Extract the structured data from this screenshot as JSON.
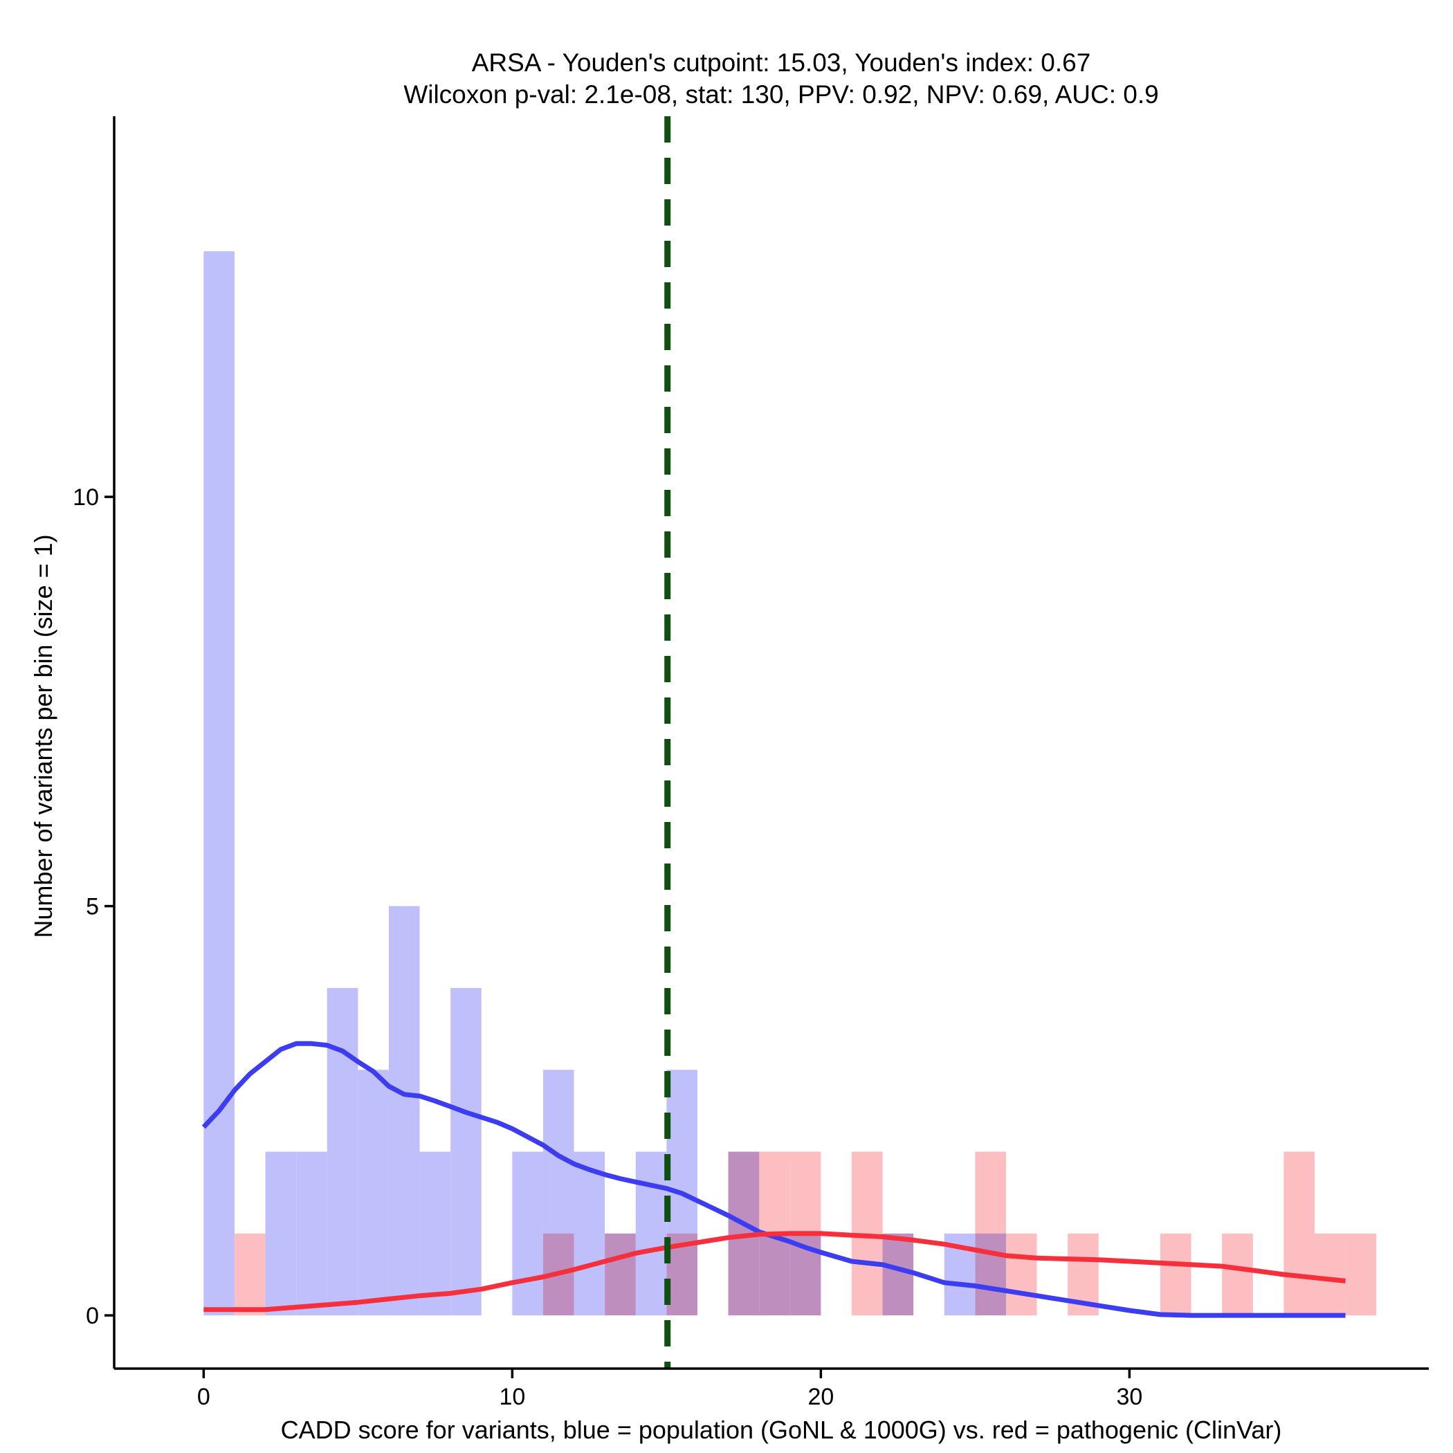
{
  "chart_data": {
    "type": "bar",
    "title_line1": "ARSA - Youden's cutpoint: 15.03, Youden's index: 0.67",
    "title_line2": "Wilcoxon p-val: 2.1e-08, stat: 130, PPV: 0.92, NPV: 0.69, AUC: 0.9",
    "xlabel": "CADD score for variants, blue = population (GoNL & 1000G) vs. red = pathogenic (ClinVar)",
    "ylabel": "Number of variants per bin (size = 1)",
    "xlim": [
      -2.9,
      39.7
    ],
    "ylim": [
      -0.65,
      14.65
    ],
    "x_ticks": [
      0,
      10,
      20,
      30
    ],
    "y_ticks": [
      0,
      5,
      10
    ],
    "bin_size": 1,
    "cutpoint": 15.03,
    "colors": {
      "population_bar": "#bfbffb",
      "pathogenic_bar": "#fdbec1",
      "population_line": "#3c3cf0",
      "pathogenic_line": "#f5303c",
      "cutpoint_line": "#0f4f0f"
    },
    "series": [
      {
        "name": "population (GoNL & 1000G)",
        "bins": [
          {
            "start": 0,
            "count": 13
          },
          {
            "start": 2,
            "count": 2
          },
          {
            "start": 3,
            "count": 2
          },
          {
            "start": 4,
            "count": 4
          },
          {
            "start": 5,
            "count": 3
          },
          {
            "start": 6,
            "count": 5
          },
          {
            "start": 7,
            "count": 2
          },
          {
            "start": 8,
            "count": 4
          },
          {
            "start": 10,
            "count": 2
          },
          {
            "start": 11,
            "count": 3
          },
          {
            "start": 12,
            "count": 2
          },
          {
            "start": 13,
            "count": 1
          },
          {
            "start": 14,
            "count": 2
          },
          {
            "start": 15,
            "count": 3
          },
          {
            "start": 17,
            "count": 2
          },
          {
            "start": 18,
            "count": 1
          },
          {
            "start": 19,
            "count": 1
          },
          {
            "start": 22,
            "count": 1
          },
          {
            "start": 24,
            "count": 1
          },
          {
            "start": 25,
            "count": 1
          }
        ],
        "density_curve": {
          "x": [
            0,
            0.5,
            1,
            1.5,
            2,
            2.5,
            3,
            3.5,
            4,
            4.5,
            5,
            5.5,
            6,
            6.5,
            7,
            7.5,
            8,
            8.5,
            9,
            9.5,
            10,
            10.5,
            11,
            11.5,
            12,
            12.5,
            13,
            13.5,
            14,
            14.5,
            15,
            15.5,
            16,
            16.5,
            17,
            17.5,
            18,
            18.5,
            19,
            19.5,
            20,
            21,
            22,
            23,
            24,
            25,
            26,
            27,
            28,
            29,
            30,
            31,
            32,
            33,
            34,
            35,
            36,
            37
          ],
          "y": [
            2.3,
            2.5,
            2.75,
            2.95,
            3.1,
            3.25,
            3.32,
            3.32,
            3.3,
            3.23,
            3.1,
            2.98,
            2.8,
            2.7,
            2.68,
            2.62,
            2.55,
            2.48,
            2.42,
            2.36,
            2.28,
            2.18,
            2.08,
            1.95,
            1.85,
            1.78,
            1.72,
            1.67,
            1.63,
            1.59,
            1.55,
            1.49,
            1.4,
            1.31,
            1.22,
            1.12,
            1.02,
            0.96,
            0.9,
            0.83,
            0.77,
            0.66,
            0.62,
            0.52,
            0.4,
            0.36,
            0.3,
            0.24,
            0.18,
            0.12,
            0.06,
            0.01,
            0,
            0,
            0,
            0,
            0,
            0
          ]
        }
      },
      {
        "name": "pathogenic (ClinVar)",
        "bins": [
          {
            "start": 1,
            "count": 1
          },
          {
            "start": 11,
            "count": 1
          },
          {
            "start": 13,
            "count": 1
          },
          {
            "start": 15,
            "count": 1
          },
          {
            "start": 17,
            "count": 2
          },
          {
            "start": 18,
            "count": 2
          },
          {
            "start": 19,
            "count": 2
          },
          {
            "start": 21,
            "count": 2
          },
          {
            "start": 22,
            "count": 1
          },
          {
            "start": 25,
            "count": 2
          },
          {
            "start": 26,
            "count": 1
          },
          {
            "start": 28,
            "count": 1
          },
          {
            "start": 31,
            "count": 1
          },
          {
            "start": 33,
            "count": 1
          },
          {
            "start": 35,
            "count": 2
          },
          {
            "start": 36,
            "count": 1
          },
          {
            "start": 37,
            "count": 1
          }
        ],
        "density_curve": {
          "x": [
            0,
            1,
            2,
            3,
            4,
            5,
            6,
            7,
            8,
            9,
            10,
            11,
            12,
            13,
            14,
            15,
            16,
            17,
            18,
            19,
            20,
            21,
            22,
            23,
            24,
            25,
            26,
            27,
            28,
            29,
            30,
            31,
            32,
            33,
            34,
            35,
            36,
            37
          ],
          "y": [
            0.07,
            0.07,
            0.07,
            0.1,
            0.13,
            0.16,
            0.2,
            0.24,
            0.27,
            0.32,
            0.4,
            0.47,
            0.56,
            0.66,
            0.76,
            0.83,
            0.89,
            0.95,
            0.99,
            1.0,
            1.0,
            0.98,
            0.96,
            0.92,
            0.87,
            0.8,
            0.73,
            0.7,
            0.69,
            0.68,
            0.66,
            0.64,
            0.62,
            0.6,
            0.55,
            0.5,
            0.46,
            0.42
          ]
        }
      }
    ]
  }
}
